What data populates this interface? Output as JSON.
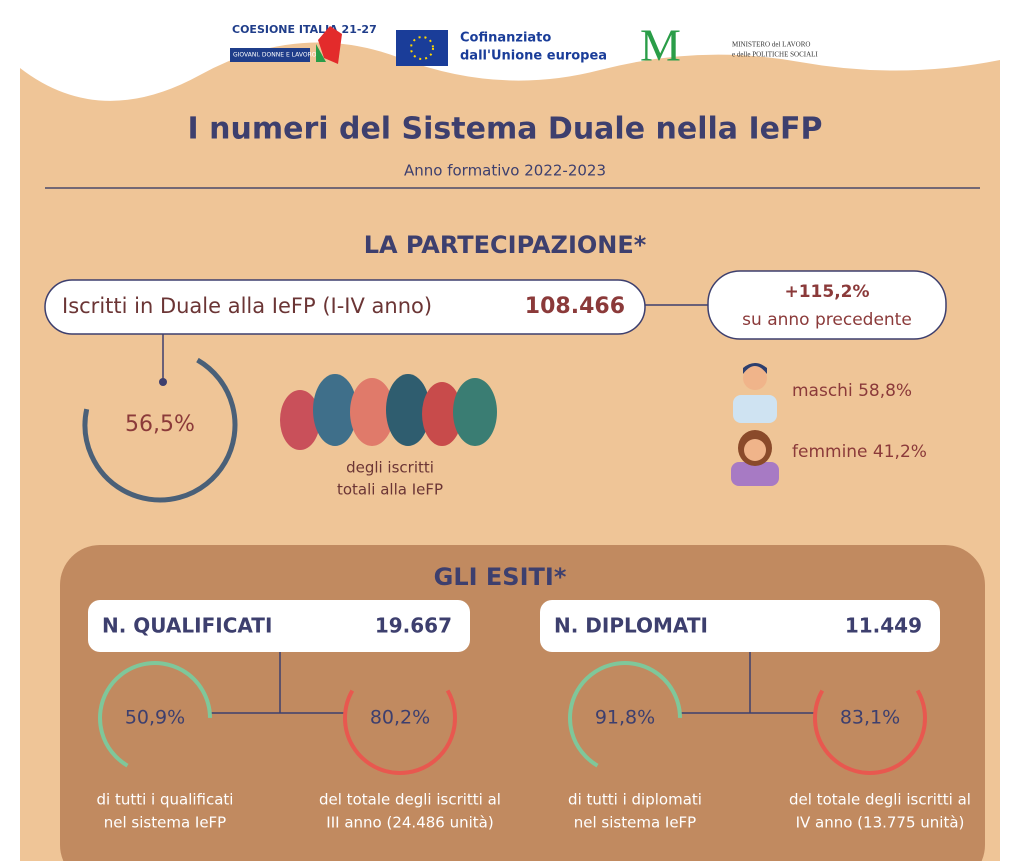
{
  "header": {
    "logos": {
      "coesione": "COESIONE ITALIA 21-27",
      "coesione_sub": "GIOVANI, DONNE E LAVORO",
      "eu": [
        "Cofinanziato",
        "dall'Unione europea"
      ],
      "ministry": [
        "MINISTERO del LAVORO",
        "e delle POLITICHE SOCIALI"
      ]
    },
    "title": "I numeri del Sistema Duale nella IeFP",
    "subtitle": "Anno formativo 2022-2023"
  },
  "participation": {
    "heading": "LA PARTECIPAZIONE*",
    "enrolled_label": "Iscritti in Duale alla IeFP (I-IV anno)",
    "enrolled_value": "108.466",
    "growth": "+115,2%",
    "growth_note": "su anno precedente",
    "share": "56,5%",
    "share_caption": [
      "degli iscritti",
      "totali alla IeFP"
    ],
    "male": "maschi 58,8%",
    "female": "femmine 41,2%"
  },
  "outcomes": {
    "heading": "GLI ESITI*",
    "groups": [
      {
        "label": "N. QUALIFICATI",
        "value": "19.667",
        "stats": [
          {
            "percent": "50,9%",
            "caption": [
              "di tutti i qualificati",
              "nel sistema IeFP"
            ]
          },
          {
            "percent": "80,2%",
            "caption": [
              "del totale degli iscritti al",
              "III anno (24.486 unità)"
            ]
          }
        ]
      },
      {
        "label": "N. DIPLOMATI",
        "value": "11.449",
        "stats": [
          {
            "percent": "91,8%",
            "caption": [
              "di tutti i diplomati",
              "nel sistema IeFP"
            ]
          },
          {
            "percent": "83,1%",
            "caption": [
              "del totale degli iscritti al",
              "IV anno (13.775 unità)"
            ]
          }
        ]
      }
    ]
  }
}
